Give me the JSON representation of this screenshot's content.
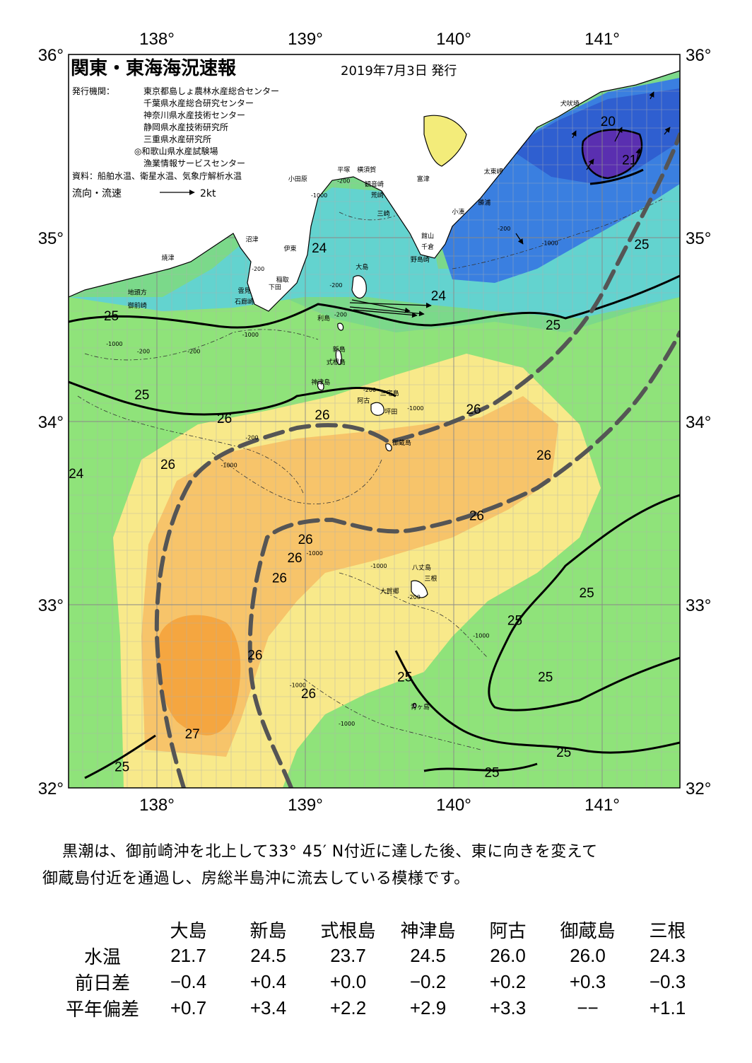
{
  "header": {
    "title": "関東・東海海況速報",
    "date": "2019年7月3日 発行",
    "issuers_label": "発行機関：",
    "issuers": [
      "東京都島しょ農林水産総合センター",
      "千葉県水産総合研究センター",
      "神奈川県水産技術センター",
      "静岡県水産技術研究所",
      "三重県水産研究所",
      "◎和歌山県水産試験場",
      "漁業情報サービスセンター"
    ],
    "sources": "資料：船舶水温、衛星水温、気象庁解析水温",
    "legend_label": "流向・流速",
    "legend_speed": "2kt"
  },
  "axes": {
    "lon_labels": [
      "138°",
      "139°",
      "140°",
      "141°"
    ],
    "lat_labels": [
      "36°",
      "35°",
      "34°",
      "33°",
      "32°"
    ],
    "lon_values": [
      138,
      139,
      140,
      141
    ],
    "lat_values": [
      36,
      35,
      34,
      33,
      32
    ],
    "lon_range": [
      137.5,
      141.5
    ],
    "lat_range": [
      32,
      36
    ]
  },
  "place_names": [
    {
      "text": "犬吠埼",
      "lon": 140.78,
      "lat": 35.72
    },
    {
      "text": "太東岬",
      "lon": 140.28,
      "lat": 35.35
    },
    {
      "text": "勝浦",
      "lon": 140.22,
      "lat": 35.18
    },
    {
      "text": "小湊",
      "lon": 140.05,
      "lat": 35.13
    },
    {
      "text": "館山",
      "lon": 139.85,
      "lat": 35.0
    },
    {
      "text": "千倉",
      "lon": 139.85,
      "lat": 34.94
    },
    {
      "text": "野島崎",
      "lon": 139.8,
      "lat": 34.87
    },
    {
      "text": "富津",
      "lon": 139.82,
      "lat": 35.31
    },
    {
      "text": "平塚",
      "lon": 139.3,
      "lat": 35.36
    },
    {
      "text": "横須賀",
      "lon": 139.45,
      "lat": 35.36
    },
    {
      "text": "観音崎",
      "lon": 139.5,
      "lat": 35.28
    },
    {
      "text": "荒崎",
      "lon": 139.52,
      "lat": 35.22
    },
    {
      "text": "三崎",
      "lon": 139.56,
      "lat": 35.12
    },
    {
      "text": "小田原",
      "lon": 139.0,
      "lat": 35.31
    },
    {
      "text": "沼津",
      "lon": 138.7,
      "lat": 34.98
    },
    {
      "text": "伊東",
      "lon": 138.95,
      "lat": 34.93
    },
    {
      "text": "焼津",
      "lon": 138.15,
      "lat": 34.88
    },
    {
      "text": "稲取",
      "lon": 138.9,
      "lat": 34.76
    },
    {
      "text": "下田",
      "lon": 138.85,
      "lat": 34.72
    },
    {
      "text": "雲見",
      "lon": 138.65,
      "lat": 34.7
    },
    {
      "text": "石廊崎",
      "lon": 138.65,
      "lat": 34.64
    },
    {
      "text": "地頭方",
      "lon": 137.95,
      "lat": 34.69
    },
    {
      "text": "御前崎",
      "lon": 137.95,
      "lat": 34.62
    },
    {
      "text": "大島",
      "lon": 139.42,
      "lat": 34.83
    },
    {
      "text": "利島",
      "lon": 139.17,
      "lat": 34.55
    },
    {
      "text": "新島",
      "lon": 139.27,
      "lat": 34.38
    },
    {
      "text": "式根島",
      "lon": 139.25,
      "lat": 34.31
    },
    {
      "text": "神津島",
      "lon": 139.15,
      "lat": 34.2
    },
    {
      "text": "三宅島",
      "lon": 139.6,
      "lat": 34.14
    },
    {
      "text": "阿古",
      "lon": 139.43,
      "lat": 34.1
    },
    {
      "text": "坪田",
      "lon": 139.61,
      "lat": 34.04
    },
    {
      "text": "御蔵島",
      "lon": 139.68,
      "lat": 33.87
    },
    {
      "text": "八丈島",
      "lon": 139.81,
      "lat": 33.19
    },
    {
      "text": "三根",
      "lon": 139.87,
      "lat": 33.13
    },
    {
      "text": "大賀郷",
      "lon": 139.6,
      "lat": 33.06
    },
    {
      "text": "青ヶ島",
      "lon": 139.8,
      "lat": 32.43
    }
  ],
  "contour_labels": [
    {
      "text": "20",
      "lon": 141.03,
      "lat": 35.61
    },
    {
      "text": "21",
      "lon": 141.17,
      "lat": 35.4
    },
    {
      "text": "24",
      "lon": 139.14,
      "lat": 34.92
    },
    {
      "text": "24",
      "lon": 139.92,
      "lat": 34.66
    },
    {
      "text": "24",
      "lon": 137.55,
      "lat": 33.69
    },
    {
      "text": "25",
      "lon": 141.25,
      "lat": 34.94
    },
    {
      "text": "25",
      "lon": 137.78,
      "lat": 34.55
    },
    {
      "text": "25",
      "lon": 140.67,
      "lat": 34.5
    },
    {
      "text": "25",
      "lon": 137.98,
      "lat": 34.12
    },
    {
      "text": "25",
      "lon": 140.89,
      "lat": 33.04
    },
    {
      "text": "25",
      "lon": 140.42,
      "lat": 32.89
    },
    {
      "text": "25",
      "lon": 139.7,
      "lat": 32.58
    },
    {
      "text": "25",
      "lon": 140.62,
      "lat": 32.58
    },
    {
      "text": "25",
      "lon": 140.74,
      "lat": 32.17
    },
    {
      "text": "25",
      "lon": 137.85,
      "lat": 32.09
    },
    {
      "text": "25",
      "lon": 140.27,
      "lat": 32.06
    },
    {
      "text": "26",
      "lon": 138.52,
      "lat": 33.99
    },
    {
      "text": "26",
      "lon": 139.16,
      "lat": 34.01
    },
    {
      "text": "26",
      "lon": 140.15,
      "lat": 34.04
    },
    {
      "text": "26",
      "lon": 140.61,
      "lat": 33.79
    },
    {
      "text": "26",
      "lon": 138.15,
      "lat": 33.74
    },
    {
      "text": "26",
      "lon": 140.17,
      "lat": 33.46
    },
    {
      "text": "26",
      "lon": 139.05,
      "lat": 33.33
    },
    {
      "text": "26",
      "lon": 138.98,
      "lat": 33.23
    },
    {
      "text": "26",
      "lon": 138.88,
      "lat": 33.12
    },
    {
      "text": "26",
      "lon": 138.72,
      "lat": 32.7
    },
    {
      "text": "26",
      "lon": 139.07,
      "lat": 32.49
    },
    {
      "text": "27",
      "lon": 138.31,
      "lat": 32.27
    }
  ],
  "depth_labels": [
    {
      "text": "-200",
      "lon": 139.3,
      "lat": 35.3
    },
    {
      "text": "-1000",
      "lon": 139.14,
      "lat": 35.22
    },
    {
      "text": "-200",
      "lon": 138.74,
      "lat": 34.82
    },
    {
      "text": "-200",
      "lon": 139.25,
      "lat": 34.73
    },
    {
      "text": "-200",
      "lon": 139.28,
      "lat": 34.57
    },
    {
      "text": "-1000",
      "lon": 138.69,
      "lat": 34.46
    },
    {
      "text": "-200",
      "lon": 137.99,
      "lat": 34.37
    },
    {
      "text": "-1000",
      "lon": 137.8,
      "lat": 34.41
    },
    {
      "text": "-200",
      "lon": 138.32,
      "lat": 34.37
    },
    {
      "text": "-200",
      "lon": 138.7,
      "lat": 33.9
    },
    {
      "text": "-1000",
      "lon": 138.55,
      "lat": 33.75
    },
    {
      "text": "-200",
      "lon": 139.47,
      "lat": 34.16
    },
    {
      "text": "-1000",
      "lon": 139.77,
      "lat": 34.06
    },
    {
      "text": "-200",
      "lon": 140.35,
      "lat": 35.04
    },
    {
      "text": "-1000",
      "lon": 140.65,
      "lat": 34.96
    },
    {
      "text": "-1000",
      "lon": 139.11,
      "lat": 33.27
    },
    {
      "text": "-1000",
      "lon": 139.53,
      "lat": 33.2
    },
    {
      "text": "-200",
      "lon": 139.76,
      "lat": 33.03
    },
    {
      "text": "-1000",
      "lon": 140.2,
      "lat": 32.82
    },
    {
      "text": "-1000",
      "lon": 139.0,
      "lat": 32.55
    },
    {
      "text": "-1000",
      "lon": 139.32,
      "lat": 32.34
    }
  ],
  "summary": {
    "line1": "黒潮は、御前崎沖を北上して33° 45′ N付近に達した後、東に向きを変えて",
    "line2": "御蔵島付近を通過し、房総半島沖に流去している模様です。"
  },
  "table": {
    "columns": [
      "大島",
      "新島",
      "式根島",
      "神津島",
      "阿古",
      "御蔵島",
      "三根"
    ],
    "rows": [
      {
        "label": "水温",
        "values": [
          "21.7",
          "24.5",
          "23.7",
          "24.5",
          "26.0",
          "26.0",
          "24.3"
        ]
      },
      {
        "label": "前日差",
        "values": [
          "−0.4",
          "+0.4",
          "+0.0",
          "−0.2",
          "+0.2",
          "+0.3",
          "−0.3"
        ]
      },
      {
        "label": "平年偏差",
        "values": [
          "+0.7",
          "+3.4",
          "+2.2",
          "+2.9",
          "+3.3",
          "−−",
          "+1.1"
        ]
      }
    ]
  },
  "colors": {
    "land": "#ffffff",
    "ocean_green": "#8fe37a",
    "warm_yellow": "#f8e98a",
    "warm_orange": "#f7c46a",
    "hot_orange": "#f5a640",
    "cyan": "#6fd8d6",
    "blue": "#3a7fe0",
    "deep_blue": "#5a2fb0",
    "kuroshio_axis": "#555555"
  }
}
